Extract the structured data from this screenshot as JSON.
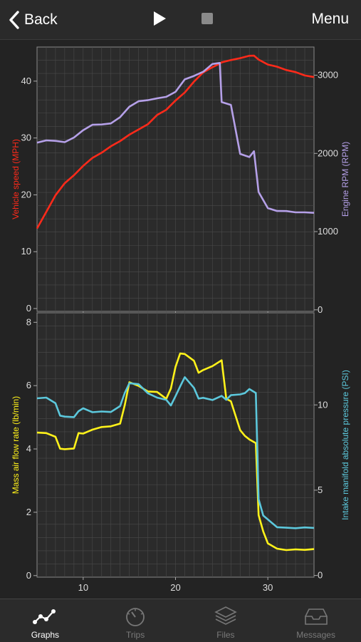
{
  "nav": {
    "back_label": "Back",
    "menu_label": "Menu",
    "play_icon": "play-icon",
    "stop_icon": "stop-icon"
  },
  "chart_data": [
    {
      "type": "line",
      "x": [
        5,
        6,
        7,
        8,
        9,
        10,
        11,
        12,
        13,
        14,
        15,
        16,
        17,
        18,
        19,
        20,
        21,
        22,
        23,
        24,
        24.8,
        25,
        26,
        27,
        28,
        28.5,
        29,
        30,
        31,
        32,
        33,
        34,
        35
      ],
      "xlim": [
        5,
        35
      ],
      "xticks": [
        10,
        20,
        30
      ],
      "grid": true,
      "series": [
        {
          "name": "Vehicle speed (MPH)",
          "axis": "left",
          "color": "#ff2a1a",
          "values": [
            14,
            17,
            20,
            22,
            23.5,
            25,
            26.5,
            27.5,
            28.5,
            29.5,
            30.5,
            31.5,
            32.5,
            34,
            35,
            36.5,
            38,
            40,
            41.5,
            42.5,
            43,
            43.3,
            43.8,
            44,
            44.5,
            44.4,
            43.8,
            43,
            42.5,
            42,
            41.5,
            41,
            40.8
          ]
        },
        {
          "name": "Engine RPM (RPM)",
          "axis": "right",
          "color": "#b5a0e8",
          "values": [
            2140,
            2160,
            2160,
            2150,
            2200,
            2300,
            2360,
            2370,
            2390,
            2460,
            2600,
            2660,
            2680,
            2710,
            2720,
            2790,
            2940,
            2990,
            3050,
            3140,
            3160,
            2650,
            2620,
            2000,
            1950,
            2030,
            1500,
            1300,
            1270,
            1260,
            1250,
            1240,
            1240
          ]
        }
      ],
      "left_axis": {
        "label": "Vehicle speed (MPH)",
        "ylim": [
          -0.5,
          46
        ],
        "ticks": [
          0,
          10,
          20,
          30,
          40
        ],
        "color": "#ff2a1a"
      },
      "right_axis": {
        "label": "Engine RPM (RPM)",
        "ylim": [
          -20,
          3360
        ],
        "ticks": [
          0,
          1000,
          2000,
          3000
        ],
        "color": "#b5a0e8"
      }
    },
    {
      "type": "line",
      "x": [
        5,
        6,
        7,
        7.5,
        8,
        9,
        9.5,
        10,
        11,
        12,
        13,
        14,
        14.5,
        15,
        16,
        17,
        18,
        19,
        19.5,
        20,
        20.5,
        21,
        22,
        22.5,
        23,
        24,
        25,
        25.5,
        26,
        27,
        27.5,
        28,
        28.7,
        29,
        29.5,
        30,
        31,
        32,
        33,
        34,
        35
      ],
      "xlim": [
        5,
        35
      ],
      "xticks": [
        10,
        20,
        30
      ],
      "grid": true,
      "series": [
        {
          "name": "Mass air flow rate (lb/min)",
          "axis": "left",
          "color": "#fff21a",
          "values": [
            4.5,
            4.5,
            4.4,
            4.0,
            4.0,
            4.0,
            4.5,
            4.5,
            4.6,
            4.7,
            4.7,
            4.8,
            5.4,
            6.1,
            6.0,
            5.8,
            5.8,
            5.6,
            5.9,
            6.6,
            7.0,
            7.0,
            6.8,
            6.4,
            6.5,
            6.6,
            6.8,
            5.6,
            5.5,
            4.6,
            4.4,
            4.3,
            4.2,
            1.9,
            1.4,
            1.0,
            0.85,
            0.82,
            0.82,
            0.82,
            0.82
          ]
        },
        {
          "name": "Intake manifold absolute pressure (PSI)",
          "axis": "right",
          "color": "#5cc8dc",
          "values": [
            10.4,
            10.4,
            10.1,
            9.4,
            9.3,
            9.3,
            9.6,
            9.8,
            9.6,
            9.6,
            9.6,
            9.9,
            10.7,
            11.3,
            11.2,
            10.7,
            10.4,
            10.3,
            10.0,
            10.5,
            11.1,
            11.6,
            11.0,
            10.4,
            10.4,
            10.3,
            10.5,
            10.3,
            10.6,
            10.6,
            10.7,
            10.9,
            10.7,
            4.5,
            3.5,
            3.3,
            2.8,
            2.8,
            2.8,
            2.8,
            2.8
          ]
        }
      ],
      "left_axis": {
        "label": "Mass air flow rate (lb/min)",
        "ylim": [
          -0.05,
          8.3
        ],
        "ticks": [
          0,
          2,
          4,
          6,
          8
        ],
        "color": "#fff21a"
      },
      "right_axis": {
        "label": "Intake manifold absolute pressure (PSI)",
        "ylim": [
          -0.1,
          15.4
        ],
        "ticks": [
          0,
          5,
          10
        ],
        "color": "#5cc8dc"
      }
    }
  ],
  "tabs": [
    {
      "label": "Graphs",
      "icon": "graph-icon",
      "active": true
    },
    {
      "label": "Trips",
      "icon": "speedometer-icon",
      "active": false
    },
    {
      "label": "Files",
      "icon": "stack-icon",
      "active": false
    },
    {
      "label": "Messages",
      "icon": "inbox-icon",
      "active": false
    }
  ]
}
